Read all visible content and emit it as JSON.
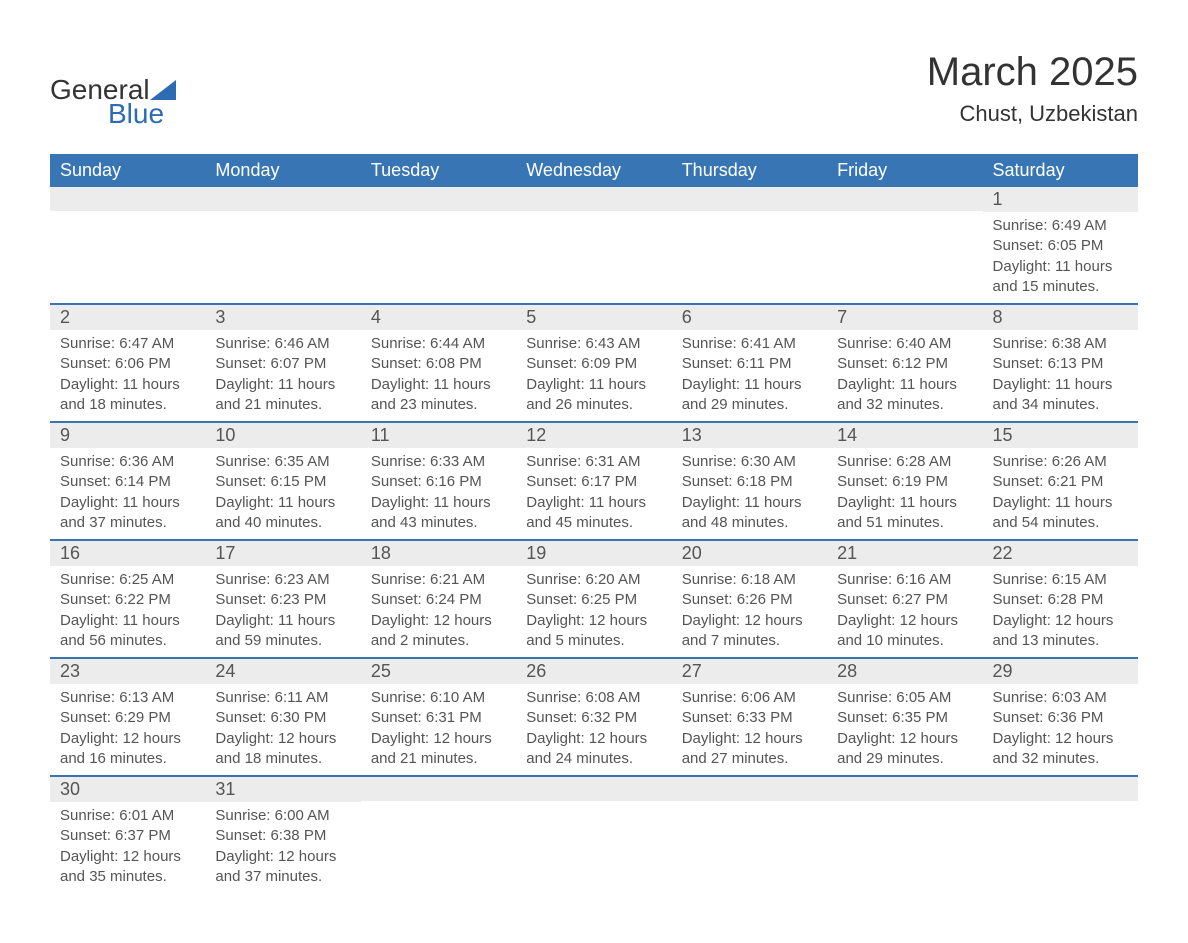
{
  "logo": {
    "text1": "General",
    "text2": "Blue",
    "brand_color": "#2d6bb3"
  },
  "title": "March 2025",
  "location": "Chust, Uzbekistan",
  "colors": {
    "header_bg": "#3875b5",
    "header_text": "#ffffff",
    "daynum_bg": "#ececec",
    "daynum_text": "#555555",
    "body_text": "#555555",
    "row_border": "#3875b5",
    "page_bg": "#ffffff"
  },
  "fonts": {
    "title_size": 40,
    "location_size": 22,
    "header_size": 18,
    "daynum_size": 18,
    "body_size": 15
  },
  "day_headers": [
    "Sunday",
    "Monday",
    "Tuesday",
    "Wednesday",
    "Thursday",
    "Friday",
    "Saturday"
  ],
  "labels": {
    "sunrise": "Sunrise:",
    "sunset": "Sunset:",
    "daylight": "Daylight:"
  },
  "weeks": [
    [
      null,
      null,
      null,
      null,
      null,
      null,
      {
        "n": "1",
        "sunrise": "6:49 AM",
        "sunset": "6:05 PM",
        "daylight": "11 hours and 15 minutes."
      }
    ],
    [
      {
        "n": "2",
        "sunrise": "6:47 AM",
        "sunset": "6:06 PM",
        "daylight": "11 hours and 18 minutes."
      },
      {
        "n": "3",
        "sunrise": "6:46 AM",
        "sunset": "6:07 PM",
        "daylight": "11 hours and 21 minutes."
      },
      {
        "n": "4",
        "sunrise": "6:44 AM",
        "sunset": "6:08 PM",
        "daylight": "11 hours and 23 minutes."
      },
      {
        "n": "5",
        "sunrise": "6:43 AM",
        "sunset": "6:09 PM",
        "daylight": "11 hours and 26 minutes."
      },
      {
        "n": "6",
        "sunrise": "6:41 AM",
        "sunset": "6:11 PM",
        "daylight": "11 hours and 29 minutes."
      },
      {
        "n": "7",
        "sunrise": "6:40 AM",
        "sunset": "6:12 PM",
        "daylight": "11 hours and 32 minutes."
      },
      {
        "n": "8",
        "sunrise": "6:38 AM",
        "sunset": "6:13 PM",
        "daylight": "11 hours and 34 minutes."
      }
    ],
    [
      {
        "n": "9",
        "sunrise": "6:36 AM",
        "sunset": "6:14 PM",
        "daylight": "11 hours and 37 minutes."
      },
      {
        "n": "10",
        "sunrise": "6:35 AM",
        "sunset": "6:15 PM",
        "daylight": "11 hours and 40 minutes."
      },
      {
        "n": "11",
        "sunrise": "6:33 AM",
        "sunset": "6:16 PM",
        "daylight": "11 hours and 43 minutes."
      },
      {
        "n": "12",
        "sunrise": "6:31 AM",
        "sunset": "6:17 PM",
        "daylight": "11 hours and 45 minutes."
      },
      {
        "n": "13",
        "sunrise": "6:30 AM",
        "sunset": "6:18 PM",
        "daylight": "11 hours and 48 minutes."
      },
      {
        "n": "14",
        "sunrise": "6:28 AM",
        "sunset": "6:19 PM",
        "daylight": "11 hours and 51 minutes."
      },
      {
        "n": "15",
        "sunrise": "6:26 AM",
        "sunset": "6:21 PM",
        "daylight": "11 hours and 54 minutes."
      }
    ],
    [
      {
        "n": "16",
        "sunrise": "6:25 AM",
        "sunset": "6:22 PM",
        "daylight": "11 hours and 56 minutes."
      },
      {
        "n": "17",
        "sunrise": "6:23 AM",
        "sunset": "6:23 PM",
        "daylight": "11 hours and 59 minutes."
      },
      {
        "n": "18",
        "sunrise": "6:21 AM",
        "sunset": "6:24 PM",
        "daylight": "12 hours and 2 minutes."
      },
      {
        "n": "19",
        "sunrise": "6:20 AM",
        "sunset": "6:25 PM",
        "daylight": "12 hours and 5 minutes."
      },
      {
        "n": "20",
        "sunrise": "6:18 AM",
        "sunset": "6:26 PM",
        "daylight": "12 hours and 7 minutes."
      },
      {
        "n": "21",
        "sunrise": "6:16 AM",
        "sunset": "6:27 PM",
        "daylight": "12 hours and 10 minutes."
      },
      {
        "n": "22",
        "sunrise": "6:15 AM",
        "sunset": "6:28 PM",
        "daylight": "12 hours and 13 minutes."
      }
    ],
    [
      {
        "n": "23",
        "sunrise": "6:13 AM",
        "sunset": "6:29 PM",
        "daylight": "12 hours and 16 minutes."
      },
      {
        "n": "24",
        "sunrise": "6:11 AM",
        "sunset": "6:30 PM",
        "daylight": "12 hours and 18 minutes."
      },
      {
        "n": "25",
        "sunrise": "6:10 AM",
        "sunset": "6:31 PM",
        "daylight": "12 hours and 21 minutes."
      },
      {
        "n": "26",
        "sunrise": "6:08 AM",
        "sunset": "6:32 PM",
        "daylight": "12 hours and 24 minutes."
      },
      {
        "n": "27",
        "sunrise": "6:06 AM",
        "sunset": "6:33 PM",
        "daylight": "12 hours and 27 minutes."
      },
      {
        "n": "28",
        "sunrise": "6:05 AM",
        "sunset": "6:35 PM",
        "daylight": "12 hours and 29 minutes."
      },
      {
        "n": "29",
        "sunrise": "6:03 AM",
        "sunset": "6:36 PM",
        "daylight": "12 hours and 32 minutes."
      }
    ],
    [
      {
        "n": "30",
        "sunrise": "6:01 AM",
        "sunset": "6:37 PM",
        "daylight": "12 hours and 35 minutes."
      },
      {
        "n": "31",
        "sunrise": "6:00 AM",
        "sunset": "6:38 PM",
        "daylight": "12 hours and 37 minutes."
      },
      null,
      null,
      null,
      null,
      null
    ]
  ]
}
